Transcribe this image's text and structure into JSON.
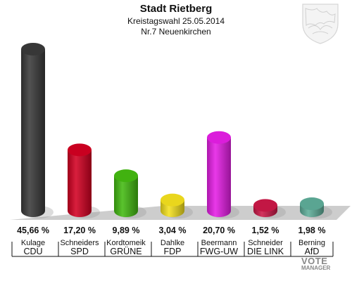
{
  "header": {
    "title": "Stadt Rietberg",
    "election": "Kreistagswahl 25.05.2014",
    "district": "Nr.7 Neuenkirchen"
  },
  "brand": {
    "line1": "VOTE",
    "line2": "MANAGER"
  },
  "colors": {
    "CDU": "#3a3a3a",
    "SPD": "#d40022",
    "GRUENE": "#44bb11",
    "FDP": "#f5e11e",
    "FWG-UWG": "#e61ee6",
    "DIE LINKE": "#cc1848",
    "AfD": "#5fae9a",
    "floor": "#c8c8c8"
  },
  "chart_data": {
    "type": "bar",
    "title": "Stadt Rietberg",
    "subtitle": "Kreistagswahl 25.05.2014 / Nr.7 Neuenkirchen",
    "categories": [
      "CDU",
      "SPD",
      "GRÜNE",
      "FDP",
      "FWG-UW",
      "DIE LINK",
      "AfD"
    ],
    "candidates": [
      "Kulage",
      "Schneiders",
      "Kordtomeik",
      "Dahlke",
      "Beermann",
      "Schneider",
      "Berning"
    ],
    "values": [
      45.66,
      17.2,
      9.89,
      3.04,
      20.7,
      1.52,
      1.98
    ],
    "value_labels": [
      "45,66 %",
      "17,20 %",
      "9,89 %",
      "3,04 %",
      "20,70 %",
      "1,52 %",
      "1,98 %"
    ],
    "color_keys": [
      "CDU",
      "SPD",
      "GRUENE",
      "FDP",
      "FWG-UWG",
      "DIE LINKE",
      "AfD"
    ],
    "ylim": [
      0,
      50
    ],
    "xlabel": "",
    "ylabel": "",
    "grid": false,
    "legend": "none"
  }
}
